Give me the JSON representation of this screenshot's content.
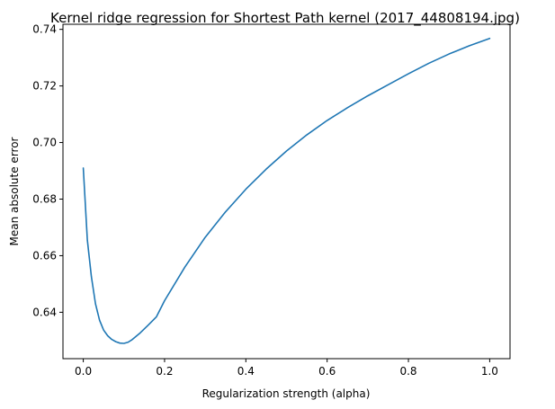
{
  "chart_data": {
    "type": "line",
    "title": "Kernel ridge regression for Shortest Path kernel (2017_44808194.jpg)",
    "xlabel": "Regularization  strength (alpha)",
    "ylabel": "Mean absolute error",
    "xlim": [
      -0.05,
      1.05
    ],
    "ylim": [
      0.6236,
      0.7418
    ],
    "xticks": [
      0.0,
      0.2,
      0.4,
      0.6,
      0.8,
      1.0
    ],
    "xtick_labels": [
      "0.0",
      "0.2",
      "0.4",
      "0.6",
      "0.8",
      "1.0"
    ],
    "yticks": [
      0.64,
      0.66,
      0.68,
      0.7,
      0.72,
      0.74
    ],
    "ytick_labels": [
      "0.64",
      "0.66",
      "0.68",
      "0.70",
      "0.72",
      "0.74"
    ],
    "grid": false,
    "line_color": "#1f77b4",
    "series": [
      {
        "x": [
          0.0,
          0.01,
          0.02,
          0.03,
          0.04,
          0.05,
          0.06,
          0.07,
          0.08,
          0.09,
          0.1,
          0.11,
          0.12,
          0.14,
          0.16,
          0.18,
          0.2,
          0.25,
          0.3,
          0.35,
          0.4,
          0.45,
          0.5,
          0.55,
          0.6,
          0.65,
          0.7,
          0.75,
          0.8,
          0.85,
          0.9,
          0.95,
          1.0
        ],
        "values": [
          0.691,
          0.6655,
          0.6525,
          0.643,
          0.6372,
          0.6337,
          0.6317,
          0.6304,
          0.6296,
          0.6291,
          0.629,
          0.6294,
          0.6303,
          0.6327,
          0.6355,
          0.6384,
          0.6441,
          0.656,
          0.6665,
          0.6755,
          0.6835,
          0.6906,
          0.697,
          0.7027,
          0.7078,
          0.7123,
          0.7165,
          0.7204,
          0.7243,
          0.728,
          0.7313,
          0.7342,
          0.7368
        ]
      }
    ]
  }
}
